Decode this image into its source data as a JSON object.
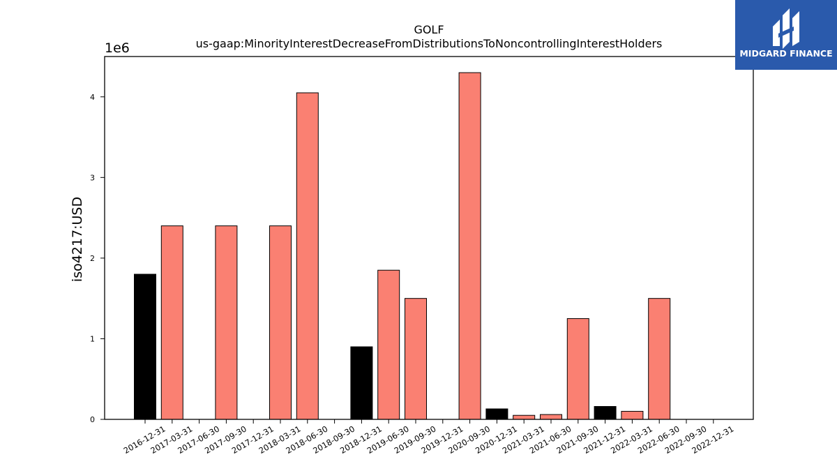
{
  "brand": {
    "name": "MIDGARD FINANCE",
    "bg_color": "#2a5aac"
  },
  "chart_data": {
    "type": "bar",
    "title": "GOLF",
    "subtitle": "us-gaap:MinorityInterestDecreaseFromDistributionsToNoncontrollingInterestHolders",
    "xlabel": "",
    "ylabel": "iso4217:USD",
    "y_scale_label": "1e6",
    "ylim": [
      0,
      4500000
    ],
    "y_ticks": [
      0,
      1000000,
      2000000,
      3000000,
      4000000
    ],
    "y_tick_labels": [
      "0",
      "1",
      "2",
      "3",
      "4"
    ],
    "grid": false,
    "categories": [
      "2016-12-31",
      "2017-03-31",
      "2017-06-30",
      "2017-09-30",
      "2017-12-31",
      "2018-03-31",
      "2018-06-30",
      "2018-09-30",
      "2018-12-31",
      "2019-06-30",
      "2019-09-30",
      "2019-12-31",
      "2020-09-30",
      "2020-12-31",
      "2021-03-31",
      "2021-06-30",
      "2021-09-30",
      "2021-12-31",
      "2022-03-31",
      "2022-06-30",
      "2022-09-30",
      "2022-12-31"
    ],
    "values": [
      1800000,
      2400000,
      0,
      2400000,
      0,
      2400000,
      4050000,
      0,
      900000,
      1850000,
      1500000,
      0,
      4300000,
      130000,
      50000,
      60000,
      1250000,
      160000,
      100000,
      1500000,
      0,
      0
    ],
    "bar_colors": [
      "#000000",
      "#fa8072",
      "#fa8072",
      "#fa8072",
      "#fa8072",
      "#fa8072",
      "#fa8072",
      "#fa8072",
      "#000000",
      "#fa8072",
      "#fa8072",
      "#fa8072",
      "#fa8072",
      "#000000",
      "#fa8072",
      "#fa8072",
      "#fa8072",
      "#000000",
      "#fa8072",
      "#fa8072",
      "#fa8072",
      "#fa8072"
    ]
  }
}
